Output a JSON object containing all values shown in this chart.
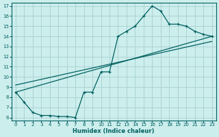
{
  "xlabel": "Humidex (Indice chaleur)",
  "bg_color": "#cceeed",
  "grid_color": "#aad4d2",
  "line_color": "#005f5f",
  "xlim": [
    -0.5,
    23.5
  ],
  "ylim": [
    5.7,
    17.3
  ],
  "yticks": [
    6,
    7,
    8,
    9,
    10,
    11,
    12,
    13,
    14,
    15,
    16,
    17
  ],
  "xticks": [
    0,
    1,
    2,
    3,
    4,
    5,
    6,
    7,
    8,
    9,
    10,
    11,
    12,
    13,
    14,
    15,
    16,
    17,
    18,
    19,
    20,
    21,
    22,
    23
  ],
  "curve1_x": [
    0,
    1,
    2,
    3,
    4,
    5,
    6,
    7,
    8,
    9,
    10,
    11,
    12,
    13,
    14,
    15,
    16,
    17,
    18,
    19,
    20,
    21,
    22,
    23
  ],
  "curve1_y": [
    8.5,
    7.5,
    6.5,
    6.2,
    6.2,
    6.1,
    6.1,
    6.0,
    8.5,
    8.5,
    10.5,
    10.5,
    14.0,
    14.5,
    15.0,
    16.0,
    17.0,
    16.5,
    15.2,
    15.2,
    15.0,
    14.5,
    14.2,
    14.0
  ],
  "line2_x": [
    0,
    23
  ],
  "line2_y": [
    8.5,
    14.0
  ],
  "line3_x": [
    0,
    23
  ],
  "line3_y": [
    9.2,
    13.5
  ]
}
